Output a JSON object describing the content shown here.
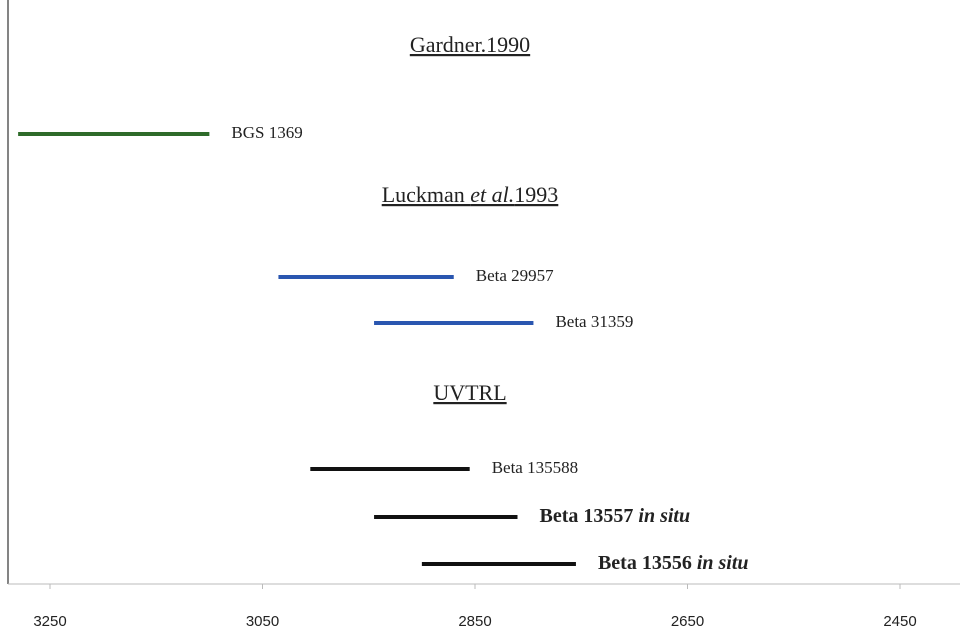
{
  "chart_data": {
    "type": "range",
    "xlim": [
      3290,
      2395
    ],
    "xticks": [
      3250,
      3050,
      2850,
      2650,
      2450
    ],
    "groups": [
      {
        "title": "Gardner.1990",
        "bars": [
          {
            "name": "BGS 1369",
            "color": "#2e6b2a",
            "values": [
              3280,
              3100
            ]
          }
        ]
      },
      {
        "title": "Luckman et al.1993",
        "title_italic": "et al.",
        "bars": [
          {
            "name": "Beta 29957",
            "color": "#2a56b0",
            "values": [
              3035,
              2870
            ]
          },
          {
            "name": "Beta 31359",
            "color": "#2a56b0",
            "values": [
              2945,
              2795
            ]
          }
        ]
      },
      {
        "title": "UVTRL",
        "bars": [
          {
            "name": "Beta  135588",
            "color": "#111111",
            "values": [
              3005,
              2855
            ]
          },
          {
            "name": "Beta 13557 in situ",
            "italic": "in situ",
            "bold": true,
            "color": "#111111",
            "values": [
              2945,
              2810
            ]
          },
          {
            "name": "Beta 13556 in situ",
            "italic": "in situ",
            "bold": true,
            "color": "#111111",
            "values": [
              2900,
              2755
            ]
          }
        ]
      }
    ]
  }
}
